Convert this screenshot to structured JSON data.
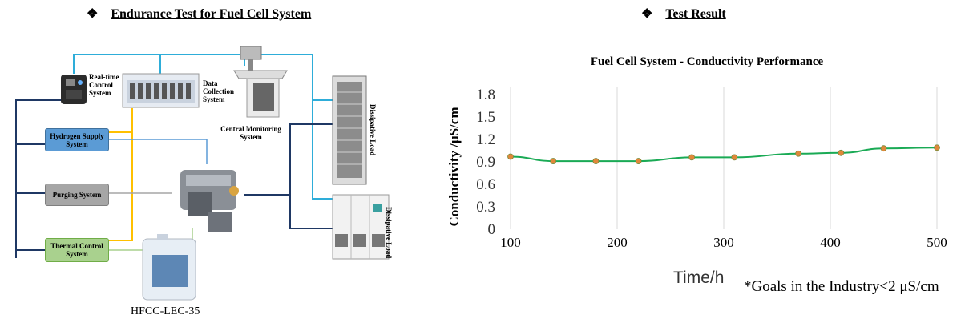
{
  "header": {
    "symbol": "❖",
    "left_title": "Endurance Test for Fuel Cell System",
    "right_title": "Test Result"
  },
  "diagram": {
    "realtime_control": "Real-time Control System",
    "data_collection": "Data Collection System",
    "central_monitoring": "Central Monitoring System",
    "hydrogen_supply": "Hydrogen Supply System",
    "purging": "Purging System",
    "thermal_control": "Thermal Control System",
    "dissipative_load_1": "Dissipative Load",
    "dissipative_load_2": "Dissipative Load",
    "coolant_label": "HFCC-LEC-35",
    "colors": {
      "hydrogen": "#5b9bd5",
      "purging": "#a6a6a6",
      "thermal": "#a9d18e",
      "trunk": "#1f3864",
      "signal": "#2eadd9",
      "coolant_line": "#ffc000"
    }
  },
  "chart_data": {
    "type": "line",
    "title": "Fuel Cell System - Conductivity Performance",
    "xlabel": "Time/h",
    "ylabel": "Conductivity /μS/cm",
    "x": [
      100,
      140,
      180,
      220,
      270,
      310,
      370,
      410,
      450,
      500
    ],
    "series": [
      {
        "values": [
          0.97,
          0.91,
          0.91,
          0.91,
          0.96,
          0.96,
          1.01,
          1.02,
          1.08,
          1.09
        ],
        "color": "#1aaa55",
        "marker_color": "#e0883a"
      }
    ],
    "xlim": [
      100,
      500
    ],
    "ylim": [
      0,
      1.8
    ],
    "xticks": [
      "100",
      "200",
      "300",
      "400",
      "500"
    ],
    "yticks": [
      "0",
      "0.3",
      "0.6",
      "0.9",
      "1.2",
      "1.5",
      "1.8"
    ],
    "grid": "vertical",
    "note": "*Goals in the Industry<2 μS/cm"
  }
}
